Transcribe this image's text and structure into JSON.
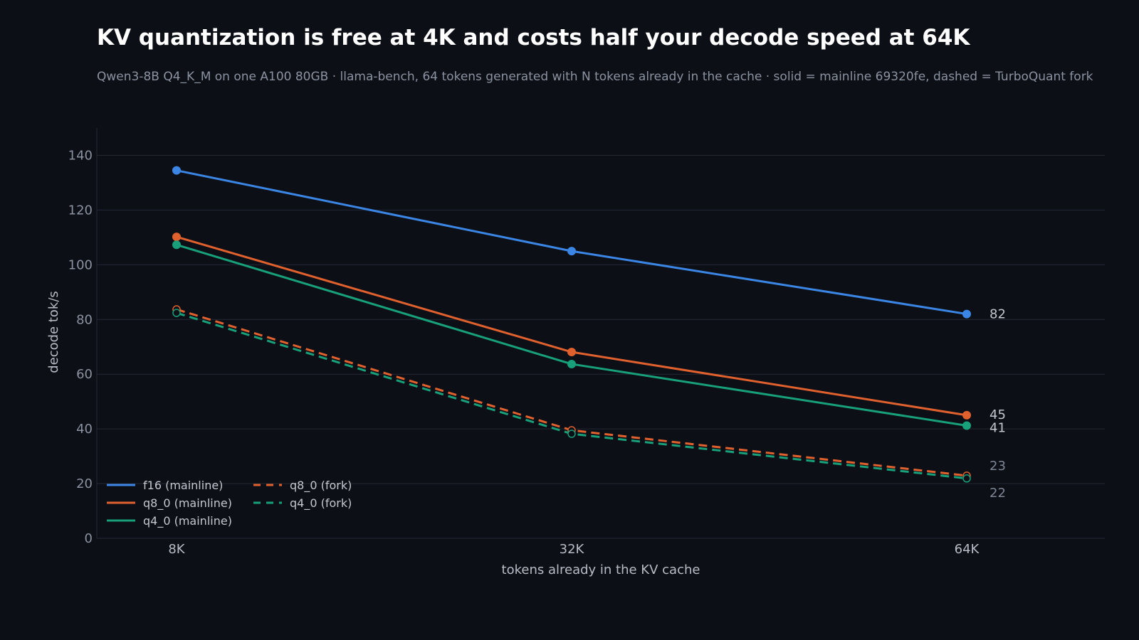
{
  "chart_data": {
    "type": "line",
    "title": "KV quantization is free at 4K and costs half your decode speed at 64K",
    "subtitle": "Qwen3-8B Q4_K_M on one A100 80GB · llama-bench, 64 tokens generated with N tokens already in the cache · solid = mainline 69320fe, dashed = TurboQuant fork",
    "xlabel": "tokens already in the KV cache",
    "ylabel": "decode tok/s",
    "categories": [
      "8K",
      "32K",
      "64K"
    ],
    "ylim": [
      0,
      150
    ],
    "yticks": [
      0,
      20,
      40,
      60,
      80,
      100,
      120,
      140
    ],
    "grid": true,
    "legend_position": "bottom-left",
    "series": [
      {
        "name": "f16 (mainline)",
        "color": "#3b86e4",
        "style": "solid",
        "values": [
          134.5,
          105,
          82
        ],
        "end_label": "82"
      },
      {
        "name": "q8_0 (mainline)",
        "color": "#e0612e",
        "style": "solid",
        "values": [
          110.2,
          68.1,
          45
        ],
        "end_label": "45"
      },
      {
        "name": "q4_0 (mainline)",
        "color": "#17a07a",
        "style": "solid",
        "values": [
          107.3,
          63.7,
          41.2
        ],
        "end_label": "41"
      },
      {
        "name": "q8_0 (fork)",
        "color": "#e0612e",
        "style": "dashed",
        "values": [
          83.7,
          39.5,
          22.9
        ],
        "end_label": "23"
      },
      {
        "name": "q4_0 (fork)",
        "color": "#17a07a",
        "style": "dashed",
        "values": [
          82.4,
          38.2,
          21.9
        ],
        "end_label": "22"
      }
    ]
  }
}
